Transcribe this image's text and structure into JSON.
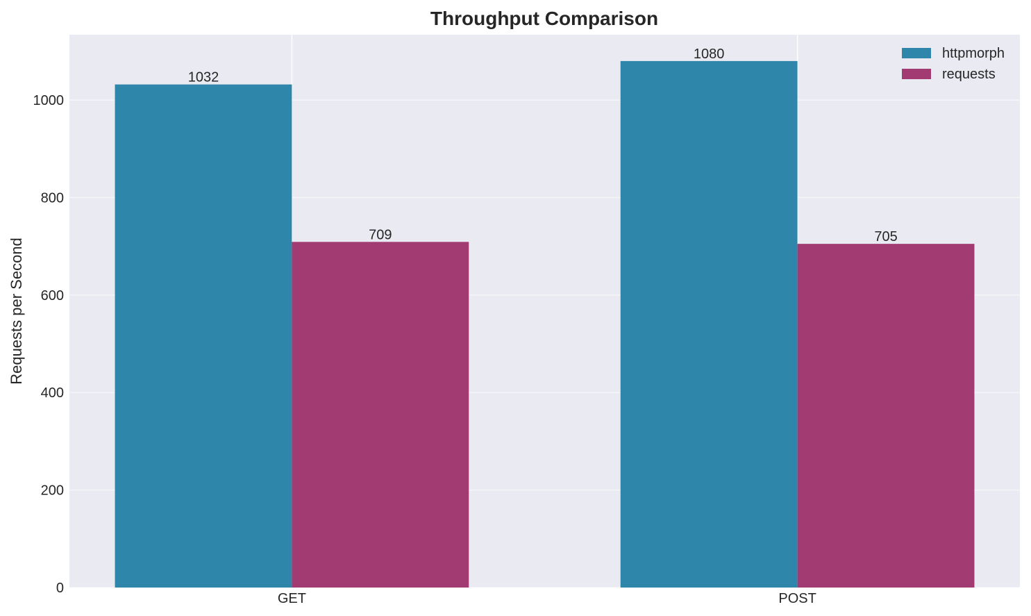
{
  "chart_data": {
    "type": "bar",
    "title": "Throughput Comparison",
    "xlabel": "",
    "ylabel": "Requests per Second",
    "categories": [
      "GET",
      "POST"
    ],
    "series": [
      {
        "name": "httpmorph",
        "values": [
          1032,
          1080
        ],
        "color": "#2E86AB"
      },
      {
        "name": "requests",
        "values": [
          709,
          705
        ],
        "color": "#A23B72"
      }
    ],
    "data_labels": [
      [
        "1032",
        "1080"
      ],
      [
        "709",
        "705"
      ]
    ],
    "ylim": [
      0,
      1134
    ],
    "yticks": [
      0,
      200,
      400,
      600,
      800,
      1000
    ],
    "ytick_labels": [
      "0",
      "200",
      "400",
      "600",
      "800",
      "1000"
    ],
    "grid": true,
    "legend_position": "top-right",
    "background_color": "#EAEAF2",
    "grid_color": "#FFFFFF"
  }
}
